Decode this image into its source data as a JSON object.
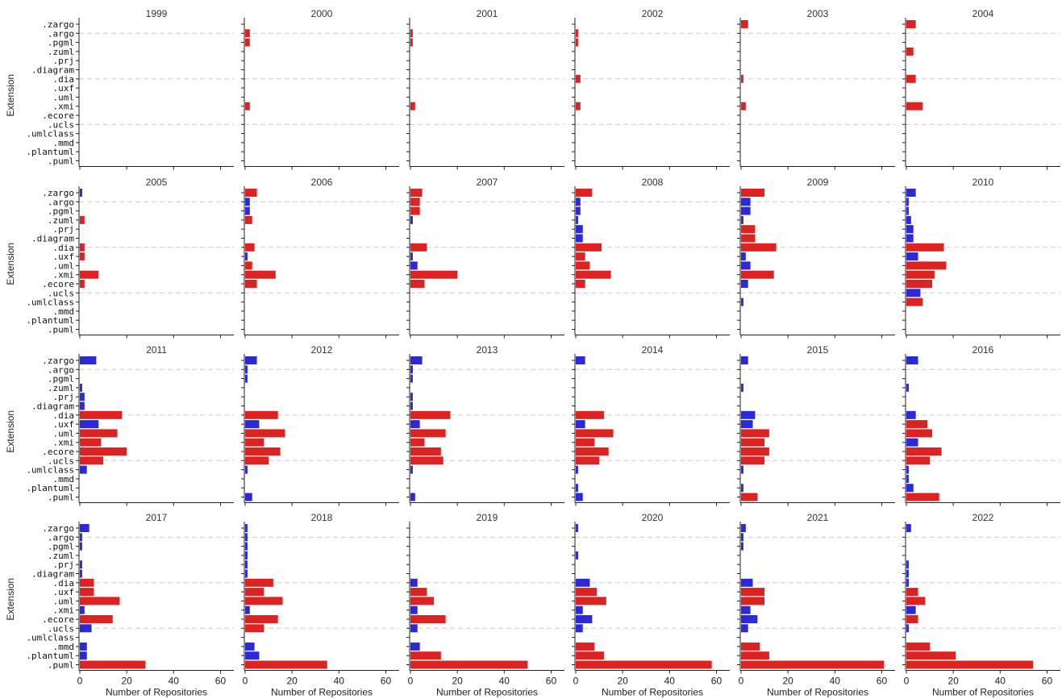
{
  "colors": {
    "red": "#dd2222",
    "blue": "#2a2ad8"
  },
  "chart_data": {
    "type": "bar",
    "orientation": "horizontal",
    "facets": "year",
    "ylabel": "Extension",
    "xlabel": "Number of Repositories",
    "xlim": [
      0,
      65
    ],
    "xticks": [
      0,
      20,
      40,
      60
    ],
    "categories": [
      ".zargo",
      ".argo",
      ".pgml",
      ".zuml",
      ".prj",
      ".diagram",
      ".dia",
      ".uxf",
      ".uml",
      ".xmi",
      ".ecore",
      ".ucls",
      ".umlclass",
      ".mmd",
      ".plantuml",
      ".puml"
    ],
    "grid_categories": [
      ".argo",
      ".dia",
      ".ucls"
    ],
    "panels": [
      {
        "title": "1999",
        "color": "red",
        "values": [
          0,
          0,
          0,
          0,
          0,
          0,
          0,
          0,
          0,
          0,
          0,
          0,
          0,
          0,
          0,
          0
        ]
      },
      {
        "title": "2000",
        "color": "red",
        "values": [
          0,
          2,
          2,
          0,
          0,
          0,
          0,
          0,
          0,
          2,
          0,
          0,
          0,
          0,
          0,
          0
        ]
      },
      {
        "title": "2001",
        "color": "red",
        "values": [
          0,
          1,
          1,
          0,
          0,
          0,
          0,
          0,
          0,
          2,
          0,
          0,
          0,
          0,
          0,
          0
        ]
      },
      {
        "title": "2002",
        "color": "red",
        "values": [
          0,
          1,
          1,
          0,
          0,
          0,
          2,
          0,
          0,
          2,
          0,
          0,
          0,
          0,
          0,
          0
        ]
      },
      {
        "title": "2003",
        "color": "red",
        "values": [
          3,
          0,
          0,
          0,
          0,
          0,
          1,
          0,
          0,
          2,
          0,
          0,
          0,
          0,
          0,
          0
        ]
      },
      {
        "title": "2004",
        "color": "red",
        "values": [
          4,
          0,
          0,
          3,
          0,
          0,
          4,
          0,
          0,
          7,
          0,
          0,
          0,
          0,
          0,
          0
        ]
      },
      {
        "title": "2005",
        "colors": [
          "blue",
          "red",
          "red",
          "red",
          "red",
          "red",
          "red",
          "red",
          "red",
          "red",
          "red",
          "red",
          "red",
          "red",
          "red",
          "red"
        ],
        "values": [
          1,
          0,
          0,
          2,
          0,
          0,
          2,
          2,
          0,
          8,
          2,
          0,
          0,
          0,
          0,
          0
        ]
      },
      {
        "title": "2006",
        "colors": [
          "red",
          "blue",
          "blue",
          "red",
          "red",
          "red",
          "red",
          "blue",
          "red",
          "red",
          "red",
          "red",
          "red",
          "red",
          "red",
          "red"
        ],
        "values": [
          5,
          2,
          2,
          3,
          0,
          0,
          4,
          1,
          3,
          13,
          5,
          0,
          0,
          0,
          0,
          0
        ]
      },
      {
        "title": "2007",
        "colors": [
          "red",
          "red",
          "red",
          "blue",
          "red",
          "red",
          "red",
          "blue",
          "blue",
          "red",
          "red",
          "red",
          "red",
          "red",
          "red",
          "red"
        ],
        "values": [
          5,
          4,
          4,
          1,
          0,
          0,
          7,
          1,
          3,
          20,
          6,
          0,
          0,
          0,
          0,
          0
        ]
      },
      {
        "title": "2008",
        "colors": [
          "red",
          "blue",
          "blue",
          "blue",
          "blue",
          "blue",
          "red",
          "red",
          "red",
          "red",
          "red",
          "red",
          "red",
          "red",
          "red",
          "red"
        ],
        "values": [
          7,
          2,
          2,
          1,
          3,
          3,
          11,
          4,
          6,
          15,
          4,
          0,
          0,
          0,
          0,
          0
        ]
      },
      {
        "title": "2009",
        "colors": [
          "red",
          "blue",
          "blue",
          "blue",
          "red",
          "red",
          "red",
          "blue",
          "blue",
          "red",
          "blue",
          "red",
          "blue",
          "red",
          "red",
          "red"
        ],
        "values": [
          10,
          4,
          4,
          1,
          6,
          6,
          15,
          2,
          4,
          14,
          3,
          0,
          1,
          0,
          0,
          0
        ]
      },
      {
        "title": "2010",
        "colors": [
          "blue",
          "blue",
          "blue",
          "blue",
          "blue",
          "blue",
          "red",
          "blue",
          "red",
          "red",
          "red",
          "blue",
          "red",
          "red",
          "red",
          "red"
        ],
        "values": [
          4,
          1,
          1,
          2,
          3,
          3,
          16,
          5,
          17,
          12,
          11,
          6,
          7,
          0,
          0,
          0
        ]
      },
      {
        "title": "2011",
        "colors": [
          "blue",
          "red",
          "red",
          "blue",
          "blue",
          "blue",
          "red",
          "blue",
          "red",
          "red",
          "red",
          "red",
          "blue",
          "red",
          "red",
          "red"
        ],
        "values": [
          7,
          0,
          0,
          1,
          2,
          2,
          18,
          8,
          16,
          9,
          20,
          10,
          3,
          0,
          0,
          0
        ]
      },
      {
        "title": "2012",
        "colors": [
          "blue",
          "blue",
          "blue",
          "red",
          "red",
          "red",
          "red",
          "blue",
          "red",
          "red",
          "red",
          "red",
          "blue",
          "red",
          "red",
          "blue"
        ],
        "values": [
          5,
          1,
          1,
          0,
          0,
          0,
          14,
          6,
          17,
          8,
          15,
          10,
          1,
          0,
          0,
          3
        ]
      },
      {
        "title": "2013",
        "colors": [
          "blue",
          "blue",
          "blue",
          "red",
          "blue",
          "blue",
          "red",
          "blue",
          "red",
          "red",
          "red",
          "red",
          "blue",
          "red",
          "red",
          "blue"
        ],
        "values": [
          5,
          1,
          1,
          0,
          1,
          1,
          17,
          4,
          15,
          6,
          13,
          14,
          1,
          0,
          0,
          2
        ]
      },
      {
        "title": "2014",
        "colors": [
          "blue",
          "red",
          "red",
          "red",
          "red",
          "red",
          "red",
          "blue",
          "red",
          "red",
          "red",
          "red",
          "blue",
          "red",
          "blue",
          "blue"
        ],
        "values": [
          4,
          0,
          0,
          0,
          0,
          0,
          12,
          4,
          16,
          8,
          14,
          10,
          1,
          0,
          1,
          3
        ]
      },
      {
        "title": "2015",
        "colors": [
          "blue",
          "red",
          "red",
          "blue",
          "red",
          "red",
          "blue",
          "blue",
          "red",
          "red",
          "red",
          "red",
          "blue",
          "red",
          "blue",
          "red"
        ],
        "values": [
          3,
          0,
          0,
          1,
          0,
          0,
          6,
          5,
          12,
          10,
          12,
          10,
          1,
          0,
          1,
          7
        ]
      },
      {
        "title": "2016",
        "colors": [
          "blue",
          "red",
          "red",
          "blue",
          "red",
          "red",
          "blue",
          "red",
          "red",
          "blue",
          "red",
          "red",
          "blue",
          "blue",
          "blue",
          "red"
        ],
        "values": [
          5,
          0,
          0,
          1,
          0,
          0,
          4,
          9,
          11,
          5,
          15,
          10,
          1,
          1,
          3,
          14
        ]
      },
      {
        "title": "2017",
        "colors": [
          "blue",
          "blue",
          "blue",
          "red",
          "blue",
          "blue",
          "red",
          "red",
          "red",
          "blue",
          "red",
          "blue",
          "red",
          "blue",
          "blue",
          "red"
        ],
        "values": [
          4,
          1,
          1,
          0,
          1,
          1,
          6,
          6,
          17,
          2,
          14,
          5,
          0,
          3,
          3,
          28
        ]
      },
      {
        "title": "2018",
        "colors": [
          "blue",
          "blue",
          "blue",
          "blue",
          "blue",
          "blue",
          "red",
          "red",
          "red",
          "blue",
          "red",
          "red",
          "red",
          "blue",
          "blue",
          "red"
        ],
        "values": [
          1,
          1,
          1,
          1,
          1,
          1,
          12,
          8,
          16,
          2,
          14,
          8,
          0,
          4,
          6,
          35
        ]
      },
      {
        "title": "2019",
        "colors": [
          "red",
          "red",
          "red",
          "red",
          "red",
          "red",
          "blue",
          "red",
          "red",
          "blue",
          "red",
          "blue",
          "red",
          "blue",
          "red",
          "red"
        ],
        "values": [
          0,
          0,
          0,
          0,
          0,
          0,
          3,
          7,
          10,
          3,
          15,
          3,
          0,
          4,
          13,
          50
        ]
      },
      {
        "title": "2020",
        "colors": [
          "blue",
          "red",
          "red",
          "blue",
          "red",
          "red",
          "blue",
          "red",
          "red",
          "blue",
          "blue",
          "blue",
          "red",
          "red",
          "red",
          "red"
        ],
        "values": [
          1,
          0,
          0,
          1,
          0,
          0,
          6,
          9,
          13,
          3,
          7,
          3,
          0,
          8,
          12,
          58
        ]
      },
      {
        "title": "2021",
        "colors": [
          "blue",
          "blue",
          "blue",
          "red",
          "red",
          "red",
          "blue",
          "red",
          "red",
          "blue",
          "blue",
          "blue",
          "red",
          "red",
          "red",
          "red"
        ],
        "values": [
          2,
          1,
          1,
          0,
          0,
          0,
          5,
          10,
          10,
          4,
          7,
          3,
          0,
          8,
          12,
          61
        ]
      },
      {
        "title": "2022",
        "colors": [
          "blue",
          "red",
          "red",
          "red",
          "blue",
          "blue",
          "blue",
          "red",
          "red",
          "blue",
          "red",
          "blue",
          "red",
          "red",
          "red",
          "red"
        ],
        "values": [
          2,
          0,
          0,
          0,
          1,
          1,
          1,
          5,
          8,
          4,
          5,
          1,
          0,
          10,
          21,
          54
        ]
      }
    ]
  }
}
